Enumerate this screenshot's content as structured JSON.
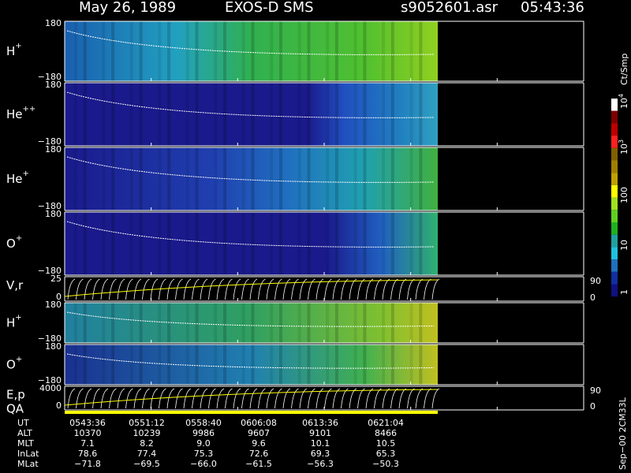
{
  "header": {
    "title": "May 26, 1989",
    "instrument": "EXOS-D SMS",
    "file": "s9052601.asr",
    "time": "05:43:36"
  },
  "panels": [
    {
      "ion": "H",
      "charge": "+",
      "top": "180",
      "bottom": "−180"
    },
    {
      "ion": "He",
      "charge": "++",
      "top": "180",
      "bottom": "−180"
    },
    {
      "ion": "He",
      "charge": "+",
      "top": "180",
      "bottom": "−180"
    },
    {
      "ion": "O",
      "charge": "+",
      "top": "180",
      "bottom": "−180"
    },
    {
      "label": "V,r",
      "top": "25",
      "bottom": "0",
      "right_top": "90",
      "right_bottom": "0"
    },
    {
      "ion": "H",
      "charge": "+",
      "top": "180",
      "bottom": "−180"
    },
    {
      "ion": "O",
      "charge": "+",
      "top": "180",
      "bottom": "−180"
    },
    {
      "label": "E,p",
      "top": "4000",
      "bottom": "0",
      "right_top": "90",
      "right_bottom": "0"
    }
  ],
  "qa": "QA",
  "colorbar": {
    "unit": "Ct/Smp",
    "ticks": [
      {
        "base": "10",
        "exp": "4"
      },
      {
        "base": "10",
        "exp": "3"
      },
      {
        "base": "100"
      },
      {
        "base": "10"
      },
      {
        "base": "1"
      }
    ]
  },
  "footer": {
    "rows": [
      [
        "UT",
        "0543:36",
        "0551:12",
        "0558:40",
        "0606:08",
        "0613:36",
        "0621:04"
      ],
      [
        "ALT",
        "10370",
        "10239",
        "9986",
        "9607",
        "9101",
        "8466"
      ],
      [
        "MLT",
        "7.1",
        "8.2",
        "9.0",
        "9.6",
        "10.1",
        "10.5"
      ],
      [
        "InLat",
        "78.6",
        "77.4",
        "75.3",
        "72.6",
        "69.3",
        "65.3"
      ],
      [
        "MLat",
        "−71.8",
        "−69.5",
        "−66.0",
        "−61.5",
        "−56.3",
        "−50.3"
      ]
    ]
  },
  "note": "Sep−00 2CM33L"
}
